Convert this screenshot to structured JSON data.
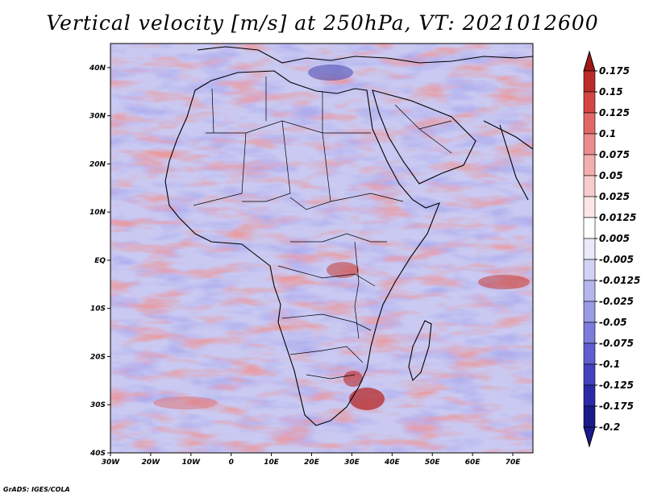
{
  "title": "Vertical velocity [m/s] at 250hPa, VT: 2021012600",
  "credit": "GrADS: IGES/COLA",
  "map": {
    "lon_range": [
      -30,
      75
    ],
    "lat_range": [
      -40,
      45
    ],
    "lat_ticks": [
      "40N",
      "30N",
      "20N",
      "10N",
      "EQ",
      "10S",
      "20S",
      "30S",
      "40S"
    ],
    "lon_ticks": [
      "30W",
      "20W",
      "10W",
      "0",
      "10E",
      "20E",
      "30E",
      "40E",
      "50E",
      "60E",
      "70E"
    ]
  },
  "colorbar": {
    "levels": [
      "0.175",
      "0.15",
      "0.125",
      "0.1",
      "0.075",
      "0.05",
      "0.025",
      "0.0125",
      "0.005",
      "-0.005",
      "-0.0125",
      "-0.025",
      "-0.05",
      "-0.075",
      "-0.1",
      "-0.125",
      "-0.175",
      "-0.2"
    ],
    "colors": [
      "#a01818",
      "#bd2a2a",
      "#d44545",
      "#e26868",
      "#ec8c8c",
      "#f3aeae",
      "#f8cccc",
      "#fce6e6",
      "#ffffff",
      "#e9e9fb",
      "#d2d2f5",
      "#b6b6ee",
      "#9a9ae6",
      "#7c7cdc",
      "#5e5ed0",
      "#4242c0",
      "#2a2aa8",
      "#1a1a8a"
    ],
    "over_color": "#a01818",
    "under_color": "#1a1a8a"
  },
  "colors": {
    "positive": "#e26868",
    "negative": "#7c7cdc",
    "land_outline": "#000000"
  }
}
